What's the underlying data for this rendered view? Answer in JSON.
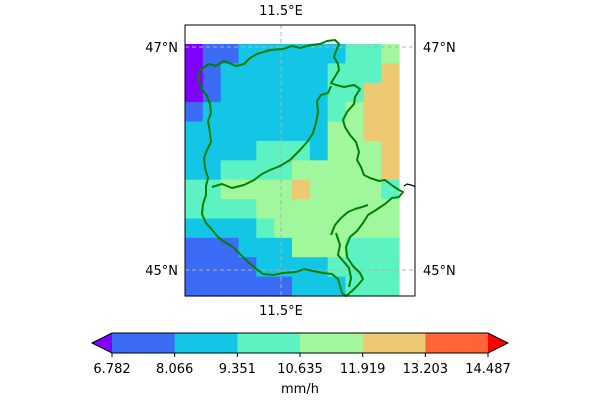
{
  "map": {
    "top_lon_label": "11.5°E",
    "bottom_lon_label": "11.5°E",
    "lat_labels_left": [
      "47°N",
      "45°N"
    ],
    "lat_labels_right": [
      "47°N",
      "45°N"
    ],
    "border_color": "#008000",
    "coast_color": "#000000",
    "grid_color": "#b0b0b0",
    "precip_grid": {
      "unit": "mm/h",
      "levels": [
        [
          0,
          1,
          1,
          2,
          2,
          2,
          2,
          2,
          2,
          3,
          3,
          4
        ],
        [
          0,
          1,
          2,
          2,
          2,
          2,
          2,
          2,
          3,
          3,
          3,
          5
        ],
        [
          0,
          1,
          2,
          2,
          2,
          2,
          2,
          2,
          3,
          3,
          5,
          5
        ],
        [
          1,
          2,
          2,
          2,
          2,
          2,
          2,
          2,
          3,
          4,
          5,
          5
        ],
        [
          2,
          2,
          2,
          2,
          2,
          2,
          2,
          2,
          4,
          4,
          5,
          5
        ],
        [
          2,
          2,
          2,
          2,
          3,
          3,
          3,
          2,
          4,
          4,
          4,
          5
        ],
        [
          2,
          2,
          3,
          3,
          3,
          3,
          4,
          4,
          4,
          4,
          4,
          5
        ],
        [
          3,
          3,
          4,
          4,
          4,
          4,
          5,
          4,
          4,
          4,
          4,
          3
        ],
        [
          3,
          3,
          3,
          3,
          4,
          4,
          4,
          4,
          4,
          4,
          4,
          4
        ],
        [
          2,
          2,
          2,
          2,
          3,
          4,
          4,
          4,
          4,
          4,
          4,
          4
        ],
        [
          1,
          1,
          1,
          2,
          2,
          2,
          4,
          4,
          4,
          3,
          3,
          3
        ],
        [
          1,
          1,
          1,
          1,
          2,
          2,
          2,
          2,
          3,
          3,
          3,
          3
        ],
        [
          1,
          1,
          1,
          1,
          1,
          1,
          2,
          2,
          2,
          3,
          3,
          3
        ]
      ]
    }
  },
  "colorbar": {
    "colors": [
      "#8000ff",
      "#3c6cf6",
      "#13c6e6",
      "#5cf2c2",
      "#a0f79c",
      "#edc973",
      "#ff6437",
      "#ff0000"
    ],
    "ticks": [
      "6.782",
      "8.066",
      "9.351",
      "10.635",
      "11.919",
      "13.203",
      "14.487"
    ],
    "label": "mm/h"
  }
}
